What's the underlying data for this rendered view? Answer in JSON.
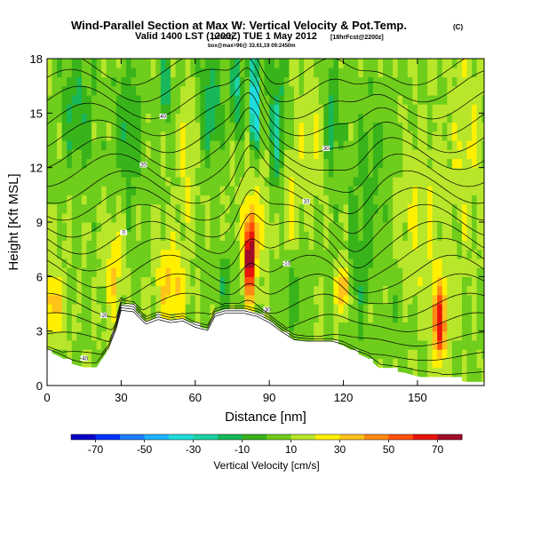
{
  "chart_data": {
    "type": "heatmap",
    "title": "Wind-Parallel Section at Max W: Vertical Velocity & Pot.Temp.",
    "title_units": "(C)",
    "subtitle": "Valid 1400 LST (1200Z) TUE 1 May 2012",
    "subtitle_detail_1": "(1200Z)",
    "subtitle_detail_2": "[18hrFcst@2200z]",
    "subtitle_line2": "box@max=96@ 33.61,19 09:2450m",
    "xlabel": "Distance [nm]",
    "ylabel": "Height [Kft MSL]",
    "xlim": [
      0,
      177
    ],
    "ylim": [
      0,
      18
    ],
    "x_ticks": [
      0,
      30,
      60,
      90,
      120,
      150
    ],
    "y_ticks": [
      0,
      3,
      6,
      9,
      12,
      15,
      18
    ],
    "colorbar": {
      "label": "Vertical Velocity [cm/s]",
      "ticks": [
        -70,
        -50,
        -30,
        -10,
        10,
        30,
        50,
        70
      ],
      "bins": [
        {
          "from": -80,
          "to": -70,
          "color": "#0a00c8"
        },
        {
          "from": -70,
          "to": -60,
          "color": "#0033ff"
        },
        {
          "from": -60,
          "to": -50,
          "color": "#1f7fff"
        },
        {
          "from": -50,
          "to": -40,
          "color": "#1eb4ff"
        },
        {
          "from": -40,
          "to": -30,
          "color": "#20dcdc"
        },
        {
          "from": -30,
          "to": -20,
          "color": "#1ed2a4"
        },
        {
          "from": -20,
          "to": -10,
          "color": "#18b85a"
        },
        {
          "from": -10,
          "to": 0,
          "color": "#38b31a"
        },
        {
          "from": 0,
          "to": 10,
          "color": "#6fcd1c"
        },
        {
          "from": 10,
          "to": 20,
          "color": "#b8e62a"
        },
        {
          "from": 20,
          "to": 30,
          "color": "#fff000"
        },
        {
          "from": 30,
          "to": 40,
          "color": "#ffc31a"
        },
        {
          "from": 40,
          "to": 50,
          "color": "#ff8a14"
        },
        {
          "from": 50,
          "to": 60,
          "color": "#ff4f0a"
        },
        {
          "from": 60,
          "to": 70,
          "color": "#e8140a"
        },
        {
          "from": 70,
          "to": 80,
          "color": "#a00c28"
        }
      ]
    },
    "terrain_kft": [
      [
        0,
        1.9
      ],
      [
        5,
        1.6
      ],
      [
        10,
        1.2
      ],
      [
        15,
        1.0
      ],
      [
        20,
        1.0
      ],
      [
        25,
        2.0
      ],
      [
        28,
        3.2
      ],
      [
        30,
        4.4
      ],
      [
        35,
        4.3
      ],
      [
        40,
        3.5
      ],
      [
        45,
        3.8
      ],
      [
        50,
        3.6
      ],
      [
        55,
        3.7
      ],
      [
        60,
        3.3
      ],
      [
        65,
        3.1
      ],
      [
        68,
        4.0
      ],
      [
        72,
        4.2
      ],
      [
        80,
        4.2
      ],
      [
        85,
        4.0
      ],
      [
        90,
        3.6
      ],
      [
        95,
        3.0
      ],
      [
        100,
        2.5
      ],
      [
        105,
        2.4
      ],
      [
        110,
        2.4
      ],
      [
        115,
        2.4
      ],
      [
        120,
        2.2
      ],
      [
        125,
        1.8
      ],
      [
        130,
        1.5
      ],
      [
        135,
        0.9
      ],
      [
        140,
        0.8
      ],
      [
        145,
        0.7
      ],
      [
        150,
        0.5
      ],
      [
        155,
        0.4
      ],
      [
        160,
        0.3
      ],
      [
        165,
        0.3
      ],
      [
        170,
        0.2
      ],
      [
        177,
        0.2
      ]
    ],
    "velocity_features": [
      {
        "x": 2,
        "z": 4.5,
        "sx": 5,
        "sz": 1.8,
        "w": 28
      },
      {
        "x": 12,
        "z": 15,
        "sx": 6,
        "sz": 3,
        "w": -20
      },
      {
        "x": 27,
        "z": 6.5,
        "sx": 4,
        "sz": 3,
        "w": 20
      },
      {
        "x": 33,
        "z": 14,
        "sx": 5,
        "sz": 4,
        "w": -18
      },
      {
        "x": 48,
        "z": 16.5,
        "sx": 2,
        "sz": 2,
        "w": -28
      },
      {
        "x": 50,
        "z": 5.5,
        "sx": 6,
        "sz": 2.5,
        "w": 25
      },
      {
        "x": 57,
        "z": 13,
        "sx": 4,
        "sz": 4,
        "w": 12
      },
      {
        "x": 66,
        "z": 15.5,
        "sx": 5,
        "sz": 3,
        "w": -24
      },
      {
        "x": 72,
        "z": 5.5,
        "sx": 3,
        "sz": 2,
        "w": -18
      },
      {
        "x": 77,
        "z": 16.5,
        "sx": 2.5,
        "sz": 2.5,
        "w": -30
      },
      {
        "x": 82,
        "z": 7.2,
        "sx": 2.2,
        "sz": 2.2,
        "w": 78
      },
      {
        "x": 84,
        "z": 15.5,
        "sx": 2,
        "sz": 3,
        "w": -55
      },
      {
        "x": 86,
        "z": 10,
        "sx": 5,
        "sz": 4,
        "w": 15
      },
      {
        "x": 93,
        "z": 14,
        "sx": 4,
        "sz": 4,
        "w": -30
      },
      {
        "x": 98,
        "z": 11,
        "sx": 5,
        "sz": 4,
        "w": 14
      },
      {
        "x": 100,
        "z": 5,
        "sx": 5,
        "sz": 2,
        "w": -15
      },
      {
        "x": 108,
        "z": 14,
        "sx": 5,
        "sz": 4,
        "w": 12
      },
      {
        "x": 115,
        "z": 14.5,
        "sx": 3,
        "sz": 3,
        "w": -25
      },
      {
        "x": 120,
        "z": 5.3,
        "sx": 2.5,
        "sz": 1.5,
        "w": 36
      },
      {
        "x": 126,
        "z": 6,
        "sx": 4,
        "sz": 3,
        "w": -15
      },
      {
        "x": 131,
        "z": 12,
        "sx": 8,
        "sz": 5,
        "w": -12
      },
      {
        "x": 140,
        "z": 3.5,
        "sx": 8,
        "sz": 2.5,
        "w": -6
      },
      {
        "x": 150,
        "z": 9,
        "sx": 10,
        "sz": 5,
        "w": 12
      },
      {
        "x": 159,
        "z": 3.5,
        "sx": 3,
        "sz": 2.2,
        "w": 55
      },
      {
        "x": 170,
        "z": 13,
        "sx": 8,
        "sz": 5,
        "w": 12
      }
    ],
    "theta_contours": {
      "levels_c": [
        -40,
        -35,
        -30,
        -25,
        -20,
        -15,
        -10,
        -5,
        0,
        5,
        10,
        15,
        20,
        25,
        30,
        35,
        40,
        45,
        50
      ],
      "label_every": 2
    }
  }
}
